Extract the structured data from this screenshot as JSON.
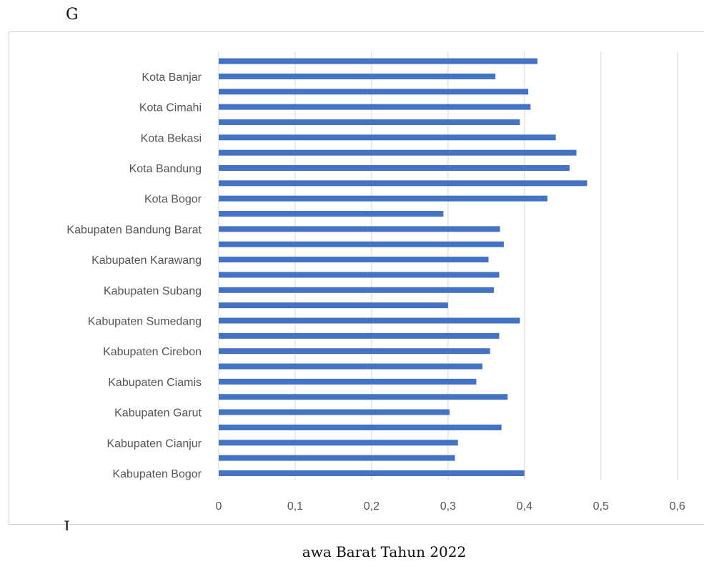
{
  "document": {
    "fragment_top": "G",
    "fragment_mid": "J",
    "caption": "awa Barat Tahun 2022"
  },
  "chart_data": {
    "type": "bar",
    "orientation": "horizontal",
    "title": "",
    "xlabel": "",
    "ylabel": "",
    "xlim": [
      0,
      0.6
    ],
    "x_ticks": [
      "0",
      "0,1",
      "0,2",
      "0,3",
      "0,4",
      "0,5",
      "0,6"
    ],
    "grid": true,
    "bar_color": "#4472c4",
    "categories": [
      "Kabupaten Bogor",
      "",
      "Kabupaten Cianjur",
      "",
      "Kabupaten Garut",
      "",
      "Kabupaten Ciamis",
      "",
      "Kabupaten Cirebon",
      "",
      "Kabupaten Sumedang",
      "",
      "Kabupaten Subang",
      "",
      "Kabupaten Karawang",
      "",
      "Kabupaten Bandung Barat",
      "",
      "Kota Bogor",
      "",
      "Kota Bandung",
      "",
      "Kota Bekasi",
      "",
      "Kota Cimahi",
      "",
      "Kota Banjar",
      ""
    ],
    "values": [
      0.4,
      0.309,
      0.313,
      0.37,
      0.302,
      0.378,
      0.337,
      0.345,
      0.355,
      0.367,
      0.394,
      0.3,
      0.36,
      0.367,
      0.353,
      0.373,
      0.368,
      0.294,
      0.43,
      0.482,
      0.459,
      0.468,
      0.441,
      0.394,
      0.408,
      0.405,
      0.362,
      0.417
    ]
  }
}
